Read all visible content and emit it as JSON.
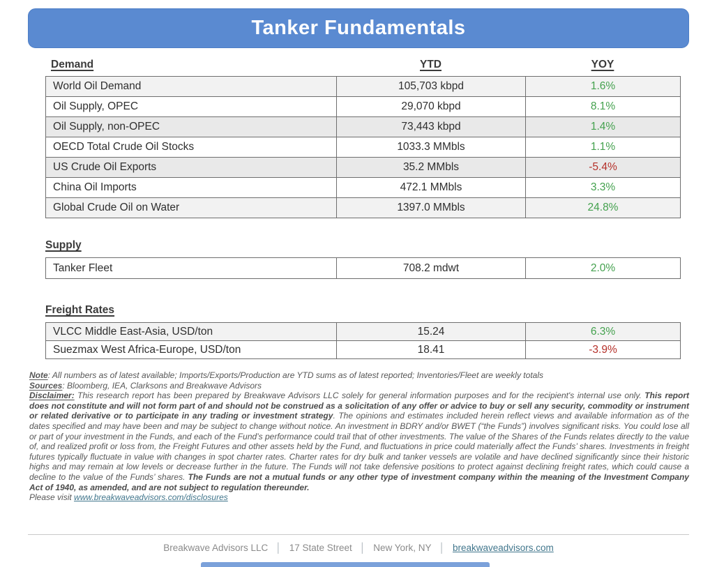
{
  "title": "Tanker Fundamentals",
  "columns": {
    "ytd": "YTD",
    "yoy": "YOY"
  },
  "demand": {
    "label": "Demand",
    "rows": [
      {
        "name": "World Oil Demand",
        "ytd": "105,703 kbpd",
        "yoy": "1.6%",
        "trend": "up"
      },
      {
        "name": "Oil Supply, OPEC",
        "ytd": "29,070 kbpd",
        "yoy": "8.1%",
        "trend": "up"
      },
      {
        "name": "Oil Supply, non-OPEC",
        "ytd": "73,443 kbpd",
        "yoy": "1.4%",
        "trend": "up"
      },
      {
        "name": "OECD Total Crude Oil Stocks",
        "ytd": "1033.3 MMbls",
        "yoy": "1.1%",
        "trend": "up"
      },
      {
        "name": "US Crude Oil Exports",
        "ytd": "35.2 MMbls",
        "yoy": "-5.4%",
        "trend": "down"
      },
      {
        "name": "China Oil Imports",
        "ytd": "472.1 MMbls",
        "yoy": "3.3%",
        "trend": "up"
      },
      {
        "name": "Global Crude Oil on Water",
        "ytd": "1397.0 MMbls",
        "yoy": "24.8%",
        "trend": "up"
      }
    ]
  },
  "supply": {
    "label": "Supply",
    "rows": [
      {
        "name": "Tanker Fleet",
        "ytd": "708.2 mdwt",
        "yoy": "2.0%",
        "trend": "up"
      }
    ]
  },
  "freight": {
    "label": "Freight Rates",
    "rows": [
      {
        "name": "VLCC Middle East-Asia, USD/ton",
        "ytd": "15.24",
        "yoy": "6.3%",
        "trend": "up"
      },
      {
        "name": "Suezmax West Africa-Europe, USD/ton",
        "ytd": "18.41",
        "yoy": "-3.9%",
        "trend": "down"
      }
    ]
  },
  "notes": {
    "note_label": "Note",
    "note_body": ": All numbers as of latest available; Imports/Exports/Production are YTD sums as of latest reported; Inventories/Fleet are weekly totals",
    "sources_label": "Sources",
    "sources_body": ": Bloomberg, IEA, Clarksons and Breakwave Advisors",
    "disclaimer_label": "Disclaimer:",
    "disclaimer_p1": " This research report has been prepared by Breakwave Advisors LLC solely for general information purposes and for the recipient's internal use only. ",
    "disclaimer_bold1": "This report does not constitute and will not form part of and should not be construed as a solicitation of any offer or advice to buy or sell any security, commodity or instrument or related derivative or to participate in any trading or investment strategy",
    "disclaimer_p2": ". The opinions and estimates included herein reflect views and available information as of the dates specified and may have been and may be subject to change without notice. An investment in BDRY and/or BWET (“the Funds”) involves significant risks. You could lose all or part of your investment in the Funds, and each of the Fund’s performance could trail that of other investments. The value of the Shares of the Funds relates directly to the value of, and realized profit or loss from, the Freight Futures and other assets held by the Fund, and fluctuations in price could materially affect the Funds’ shares. Investments in freight futures typically fluctuate in value with changes in spot charter rates. Charter rates for dry bulk and tanker vessels are volatile and have declined significantly since their historic highs and may remain at low levels or decrease further in the future. The Funds will not take defensive positions to protect against declining freight rates, which could cause a decline to the value of the Funds’ shares. ",
    "disclaimer_bold2": "The Funds are not a mutual funds or any other type of investment company within the meaning of the Investment Company Act of 1940, as amended, and are not subject to regulation thereunder.",
    "visit_prefix": "Please visit ",
    "visit_link": "www.breakwaveadvisors.com/disclosures"
  },
  "footer": {
    "company": "Breakwave Advisors LLC",
    "street": "17 State Street",
    "city": "New York, NY",
    "link": "breakwaveadvisors.com",
    "separator": "│"
  },
  "colors": {
    "banner-blue": "#5a8ad1",
    "green": "#44a14e",
    "red": "#b5312a",
    "link": "#41768c"
  }
}
